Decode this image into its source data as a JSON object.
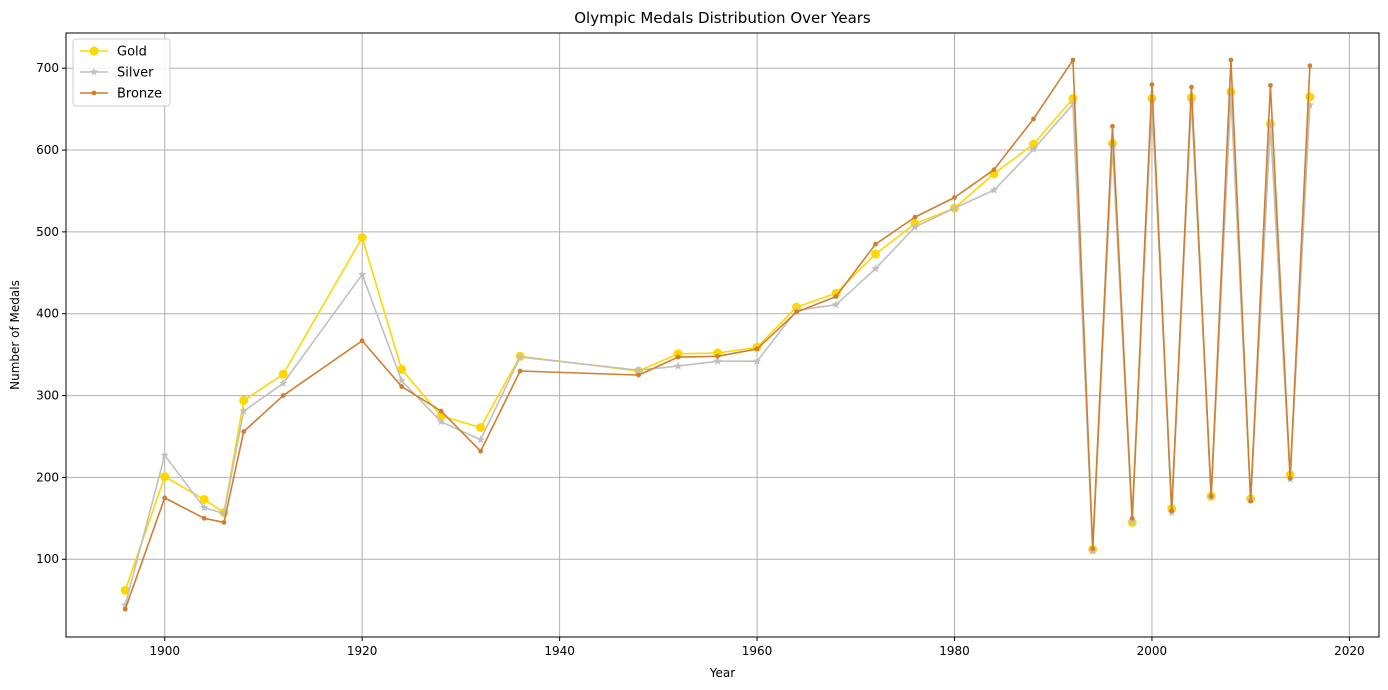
{
  "chart_data": {
    "type": "line",
    "title": "Olympic Medals Distribution Over Years",
    "xlabel": "Year",
    "ylabel": "Number of Medals",
    "xlim": [
      1890,
      2023
    ],
    "ylim": [
      5,
      743
    ],
    "xticks": [
      1900,
      1920,
      1940,
      1960,
      1980,
      2000,
      2020
    ],
    "yticks": [
      100,
      200,
      300,
      400,
      500,
      600,
      700
    ],
    "grid": true,
    "legend_position": "upper-left",
    "x": [
      1896,
      1900,
      1904,
      1906,
      1908,
      1912,
      1920,
      1924,
      1928,
      1932,
      1936,
      1948,
      1952,
      1956,
      1960,
      1964,
      1968,
      1972,
      1976,
      1980,
      1984,
      1988,
      1992,
      1994,
      1996,
      1998,
      2000,
      2002,
      2004,
      2006,
      2008,
      2010,
      2012,
      2014,
      2016
    ],
    "series": [
      {
        "name": "Gold",
        "color": "#FFD700",
        "marker": "circle",
        "values": [
          62,
          201,
          173,
          157,
          294,
          326,
          493,
          332,
          275,
          261,
          348,
          330,
          351,
          352,
          359,
          408,
          425,
          473,
          510,
          529,
          571,
          607,
          663,
          112,
          608,
          145,
          663,
          162,
          664,
          177,
          671,
          174,
          632,
          203,
          665
        ]
      },
      {
        "name": "Silver",
        "color": "#C0C0C0",
        "marker": "star",
        "values": [
          44,
          227,
          163,
          156,
          281,
          315,
          448,
          318,
          268,
          246,
          347,
          331,
          336,
          342,
          342,
          404,
          411,
          455,
          506,
          529,
          551,
          601,
          656,
          110,
          606,
          146,
          661,
          157,
          660,
          176,
          668,
          173,
          630,
          198,
          655
        ]
      },
      {
        "name": "Bronze",
        "color": "#CD7F32",
        "marker": "dot",
        "values": [
          39,
          175,
          150,
          145,
          256,
          300,
          367,
          311,
          281,
          232,
          330,
          325,
          347,
          348,
          357,
          402,
          421,
          485,
          518,
          542,
          576,
          638,
          710,
          113,
          629,
          150,
          680,
          159,
          677,
          177,
          710,
          171,
          679,
          199,
          703
        ]
      }
    ]
  }
}
